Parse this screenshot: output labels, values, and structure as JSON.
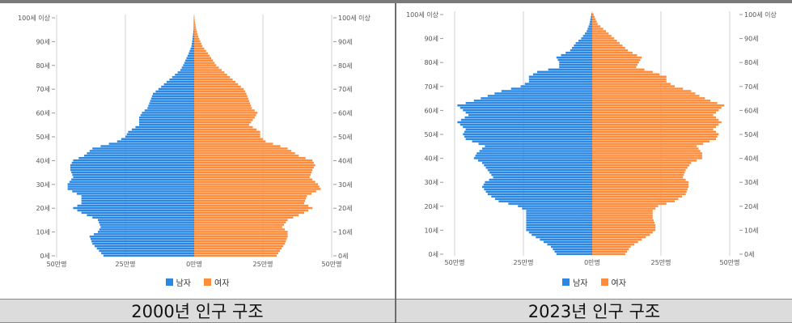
{
  "colors": {
    "male": "#2a88e4",
    "female": "#ff8c3a",
    "grid": "#d0d0d0",
    "axis_text": "#555555"
  },
  "legend": {
    "male": "남자",
    "female": "여자"
  },
  "chart_data": [
    {
      "type": "bar",
      "orientation": "horizontal-pyramid",
      "title": "2000년 인구 구조",
      "age_axis": {
        "min": 0,
        "max": 100,
        "ticks": [
          "0세",
          "10세",
          "20세",
          "30세",
          "40세",
          "50세",
          "60세",
          "70세",
          "80세",
          "90세",
          "100세 이상"
        ]
      },
      "x_axis": {
        "range": [
          -50,
          50
        ],
        "unit": "만명",
        "ticks": [
          "50만명",
          "25만명",
          "0만명",
          "25만명",
          "50만명"
        ]
      },
      "series": [
        {
          "name": "남자",
          "anchors": [
            [
              0,
              33
            ],
            [
              5,
              37
            ],
            [
              8,
              38
            ],
            [
              10,
              35
            ],
            [
              12,
              34
            ],
            [
              15,
              35
            ],
            [
              18,
              41
            ],
            [
              20,
              44
            ],
            [
              22,
              41
            ],
            [
              25,
              41
            ],
            [
              28,
              46
            ],
            [
              30,
              46
            ],
            [
              33,
              44
            ],
            [
              36,
              45
            ],
            [
              38,
              45
            ],
            [
              40,
              44
            ],
            [
              42,
              40
            ],
            [
              45,
              37
            ],
            [
              48,
              28
            ],
            [
              50,
              25
            ],
            [
              52,
              24
            ],
            [
              55,
              20
            ],
            [
              58,
              20
            ],
            [
              60,
              19
            ],
            [
              62,
              17
            ],
            [
              65,
              16
            ],
            [
              68,
              15
            ],
            [
              70,
              13
            ],
            [
              72,
              11
            ],
            [
              75,
              8
            ],
            [
              78,
              5
            ],
            [
              80,
              4
            ],
            [
              85,
              2
            ],
            [
              88,
              1
            ],
            [
              92,
              0.5
            ],
            [
              95,
              0.2
            ],
            [
              100,
              0.1
            ]
          ]
        },
        {
          "name": "여자",
          "anchors": [
            [
              0,
              30
            ],
            [
              5,
              33
            ],
            [
              8,
              34
            ],
            [
              10,
              34
            ],
            [
              12,
              32
            ],
            [
              15,
              34
            ],
            [
              18,
              40
            ],
            [
              20,
              43
            ],
            [
              22,
              40
            ],
            [
              25,
              41
            ],
            [
              28,
              46
            ],
            [
              30,
              45
            ],
            [
              33,
              42
            ],
            [
              36,
              43
            ],
            [
              38,
              44
            ],
            [
              40,
              43
            ],
            [
              42,
              38
            ],
            [
              45,
              34
            ],
            [
              48,
              26
            ],
            [
              50,
              24
            ],
            [
              52,
              24
            ],
            [
              55,
              20
            ],
            [
              58,
              22
            ],
            [
              60,
              23
            ],
            [
              62,
              21
            ],
            [
              65,
              20
            ],
            [
              68,
              19
            ],
            [
              70,
              18
            ],
            [
              72,
              16
            ],
            [
              75,
              13
            ],
            [
              78,
              10
            ],
            [
              80,
              8
            ],
            [
              85,
              5
            ],
            [
              88,
              3
            ],
            [
              92,
              1.5
            ],
            [
              95,
              0.8
            ],
            [
              98,
              0.3
            ],
            [
              100,
              0.1
            ]
          ]
        }
      ]
    },
    {
      "type": "bar",
      "orientation": "horizontal-pyramid",
      "title": "2023년 인구 구조",
      "age_axis": {
        "min": 0,
        "max": 100,
        "ticks": [
          "0세",
          "10세",
          "20세",
          "30세",
          "40세",
          "50세",
          "60세",
          "70세",
          "80세",
          "90세",
          "100세 이상"
        ]
      },
      "x_axis": {
        "range": [
          -50,
          50
        ],
        "unit": "만명",
        "ticks": [
          "50만명",
          "25만명",
          "0만명",
          "25만명",
          "50만명"
        ]
      },
      "series": [
        {
          "name": "남자",
          "anchors": [
            [
              0,
              13
            ],
            [
              3,
              15
            ],
            [
              6,
              19
            ],
            [
              8,
              22
            ],
            [
              10,
              24
            ],
            [
              12,
              24
            ],
            [
              15,
              24
            ],
            [
              18,
              24
            ],
            [
              20,
              27
            ],
            [
              22,
              34
            ],
            [
              25,
              38
            ],
            [
              28,
              40
            ],
            [
              30,
              39
            ],
            [
              32,
              36
            ],
            [
              35,
              38
            ],
            [
              38,
              40
            ],
            [
              40,
              43
            ],
            [
              42,
              42
            ],
            [
              45,
              39
            ],
            [
              48,
              46
            ],
            [
              50,
              47
            ],
            [
              52,
              46
            ],
            [
              55,
              49
            ],
            [
              58,
              45
            ],
            [
              60,
              47
            ],
            [
              62,
              49
            ],
            [
              64,
              43
            ],
            [
              66,
              38
            ],
            [
              68,
              33
            ],
            [
              70,
              26
            ],
            [
              72,
              23
            ],
            [
              74,
              23
            ],
            [
              76,
              20
            ],
            [
              78,
              12
            ],
            [
              80,
              12
            ],
            [
              82,
              13
            ],
            [
              85,
              8
            ],
            [
              88,
              6
            ],
            [
              90,
              4
            ],
            [
              93,
              2
            ],
            [
              96,
              1
            ],
            [
              100,
              0.3
            ]
          ]
        },
        {
          "name": "여자",
          "anchors": [
            [
              0,
              12
            ],
            [
              3,
              14
            ],
            [
              6,
              18
            ],
            [
              8,
              21
            ],
            [
              10,
              23
            ],
            [
              12,
              23
            ],
            [
              15,
              22
            ],
            [
              18,
              22
            ],
            [
              20,
              24
            ],
            [
              22,
              30
            ],
            [
              25,
              34
            ],
            [
              28,
              35
            ],
            [
              30,
              35
            ],
            [
              32,
              33
            ],
            [
              35,
              34
            ],
            [
              38,
              36
            ],
            [
              40,
              40
            ],
            [
              42,
              40
            ],
            [
              45,
              38
            ],
            [
              48,
              45
            ],
            [
              50,
              46
            ],
            [
              52,
              44
            ],
            [
              55,
              47
            ],
            [
              58,
              44
            ],
            [
              60,
              46
            ],
            [
              62,
              48
            ],
            [
              64,
              43
            ],
            [
              66,
              39
            ],
            [
              68,
              36
            ],
            [
              70,
              30
            ],
            [
              72,
              27
            ],
            [
              74,
              27
            ],
            [
              76,
              22
            ],
            [
              78,
              16
            ],
            [
              80,
              17
            ],
            [
              82,
              18
            ],
            [
              85,
              13
            ],
            [
              88,
              10
            ],
            [
              90,
              8
            ],
            [
              93,
              5
            ],
            [
              96,
              2
            ],
            [
              100,
              0.5
            ]
          ]
        }
      ]
    }
  ],
  "captions": [
    "2000년 인구 구조",
    "2023년 인구 구조"
  ]
}
